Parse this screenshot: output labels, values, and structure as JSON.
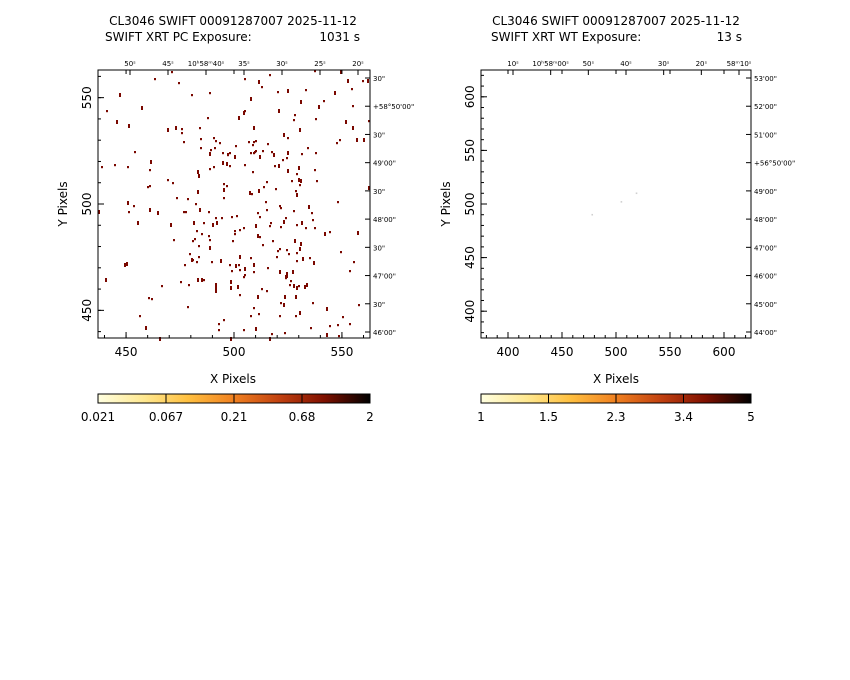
{
  "panels": [
    {
      "title_line1": "CL3046 SWIFT 00091287007 2025-11-12",
      "title_line2_label": "SWIFT XRT PC Exposure:",
      "title_line2_value": "1031 s",
      "ra_ticks": [
        "50ˢ",
        "45ˢ",
        "10ʰ58ᵐ40ˢ",
        "35ˢ",
        "30ˢ",
        "25ˢ",
        "20ˢ"
      ],
      "dec_ticks": [
        "30\"",
        "+58°50'00\"",
        "30\"",
        "49'00\"",
        "30\"",
        "48'00\"",
        "30\"",
        "47'00\"",
        "30\"",
        "46'00\""
      ],
      "colorbar_labels": [
        "0.021",
        "0.067",
        "0.21",
        "0.68",
        "2"
      ]
    },
    {
      "title_line1": "CL3046 SWIFT 00091287007 2025-11-12",
      "title_line2_label": "SWIFT XRT WT Exposure:",
      "title_line2_value": "13 s",
      "ra_ticks": [
        "10ˢ",
        "10ʰ58ᵐ00ˢ",
        "50ˢ",
        "40ˢ",
        "30ˢ",
        "20ˢ",
        "58ᵐ10ˢ"
      ],
      "dec_ticks": [
        "53'00\"",
        "52'00\"",
        "51'00\"",
        "+56°50'00\"",
        "49'00\"",
        "48'00\"",
        "47'00\"",
        "46'00\"",
        "45'00\"",
        "44'00\""
      ],
      "colorbar_labels": [
        "1",
        "1.5",
        "2.3",
        "3.4",
        "5"
      ]
    }
  ],
  "chart_data": [
    {
      "type": "heatmap",
      "xlabel": "X Pixels",
      "ylabel": "Y Pixels",
      "xlim": [
        437,
        563
      ],
      "ylim": [
        437,
        563
      ],
      "xticks": [
        450,
        500,
        550
      ],
      "yticks": [
        450,
        500,
        550
      ],
      "colormap": [
        "#ffffe0",
        "#ffd060",
        "#ff9020",
        "#e06010",
        "#a02000",
        "#600000",
        "#000000"
      ],
      "pixel_color": "#7a0800",
      "event_count": 300,
      "events_note": "scattered single counts, denser toward the right-centre of the field"
    },
    {
      "type": "heatmap",
      "xlabel": "X Pixels",
      "ylabel": "Y Pixels",
      "xlim": [
        375,
        625
      ],
      "ylim": [
        375,
        625
      ],
      "xticks": [
        400,
        450,
        500,
        550,
        600
      ],
      "yticks": [
        400,
        450,
        500,
        550,
        600
      ],
      "colormap": [
        "#ffffe0",
        "#ffd060",
        "#ff9020",
        "#e06010",
        "#a02000",
        "#600000",
        "#000000"
      ],
      "pixel_color": "#d0d0d0",
      "events": [
        [
          478,
          490
        ],
        [
          505,
          502
        ],
        [
          519,
          510
        ]
      ]
    }
  ]
}
